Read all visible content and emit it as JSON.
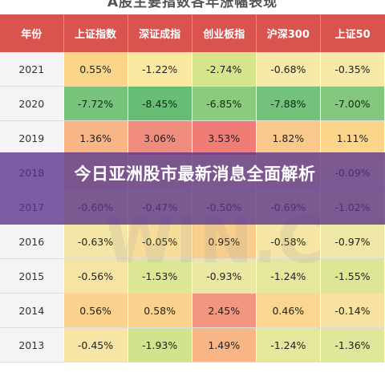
{
  "page_title": "A股主要指数各年涨幅表现",
  "overlay_title": "今日亚洲股市最新消息全面解析",
  "watermark": "WIN.C",
  "table": {
    "headers": [
      "年份",
      "上证指数",
      "深证成指",
      "创业板指",
      "沪深300",
      "上证50"
    ],
    "rows": [
      {
        "year": "2021",
        "values": [
          "0.55%",
          "-1.22%",
          "-2.74%",
          "-0.68%",
          "-0.35%"
        ],
        "colors": [
          "#fbd58a",
          "#fbe9a1",
          "#d6e58b",
          "#f7e9a7",
          "#f7e9a7"
        ]
      },
      {
        "year": "2020",
        "values": [
          "-7.72%",
          "-8.45%",
          "-6.85%",
          "-7.88%",
          "-7.00%"
        ],
        "colors": [
          "#78c47c",
          "#66bd73",
          "#8acb7d",
          "#73c17b",
          "#82c77d"
        ]
      },
      {
        "year": "2019",
        "values": [
          "1.36%",
          "3.06%",
          "3.53%",
          "1.82%",
          "1.11%"
        ],
        "colors": [
          "#f8b585",
          "#f08c7e",
          "#f17b75",
          "#f8c98a",
          "#fbd58a"
        ]
      },
      {
        "year": "2018",
        "values": [
          "",
          "",
          "",
          "",
          "-0.09%"
        ],
        "colors": [
          "#f5d39a",
          "#f3d59b",
          "#f1dda0",
          "#f3d89c",
          "#f5e2a2"
        ]
      },
      {
        "year": "2017",
        "values": [
          "-0.60%",
          "-0.47%",
          "-0.50%",
          "-0.69%",
          "-1.02%"
        ],
        "colors": [
          "#f5e3a4",
          "#f2e6a6",
          "#f2e6a6",
          "#f0e7a6",
          "#eee7a6"
        ]
      },
      {
        "year": "2016",
        "values": [
          "-0.63%",
          "-0.05%",
          "0.95%",
          "-0.58%",
          "-0.97%"
        ],
        "colors": [
          "#f3e6a6",
          "#f8dd9a",
          "#f9cd8b",
          "#f6e5a4",
          "#eee7a6"
        ]
      },
      {
        "year": "2015",
        "values": [
          "-0.56%",
          "-1.53%",
          "-0.93%",
          "-1.24%",
          "-1.55%"
        ],
        "colors": [
          "#f6e4a4",
          "#dce694",
          "#ebe8a4",
          "#e4e79c",
          "#dce694"
        ]
      },
      {
        "year": "2014",
        "values": [
          "0.56%",
          "0.58%",
          "2.45%",
          "0.46%",
          "-0.14%"
        ],
        "colors": [
          "#fbd28d",
          "#fbd28d",
          "#f2967f",
          "#fbd690",
          "#f7e2a2"
        ]
      },
      {
        "year": "2013",
        "values": [
          "-0.45%",
          "-1.93%",
          "1.49%",
          "-1.24%",
          "-1.36%"
        ],
        "colors": [
          "#f6e5a4",
          "#d2e38e",
          "#f8b585",
          "#e4e79c",
          "#e0e79a"
        ]
      }
    ]
  }
}
